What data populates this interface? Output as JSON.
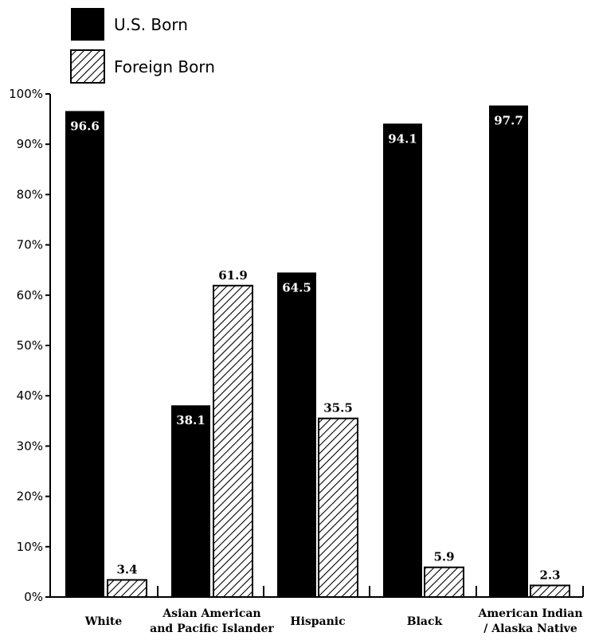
{
  "chart_data": {
    "type": "bar",
    "categories": [
      "White",
      "Asian American\nand Pacific Islander",
      "Hispanic",
      "Black",
      "American Indian\n/ Alaska Native"
    ],
    "series": [
      {
        "name": "U.S. Born",
        "values": [
          96.6,
          38.1,
          64.5,
          94.1,
          97.7
        ],
        "labels": [
          "96.6",
          "38.1",
          "64.5",
          "94.1",
          "97.7"
        ],
        "color": "#000000",
        "pattern": "solid"
      },
      {
        "name": "Foreign Born",
        "values": [
          3.4,
          61.9,
          35.5,
          5.9,
          2.3
        ],
        "labels": [
          "3.4",
          "61.9",
          "35.5",
          "5.9",
          "2.3"
        ],
        "color": "#ffffff",
        "pattern": "diagonal-hatch"
      }
    ],
    "ylim": [
      0,
      100
    ],
    "yticks": [
      "0%",
      "10%",
      "20%",
      "30%",
      "40%",
      "50%",
      "60%",
      "70%",
      "80%",
      "90%",
      "100%"
    ],
    "xlabel": "",
    "ylabel": "",
    "title": "",
    "legend_position": "top-left",
    "grid": false
  }
}
